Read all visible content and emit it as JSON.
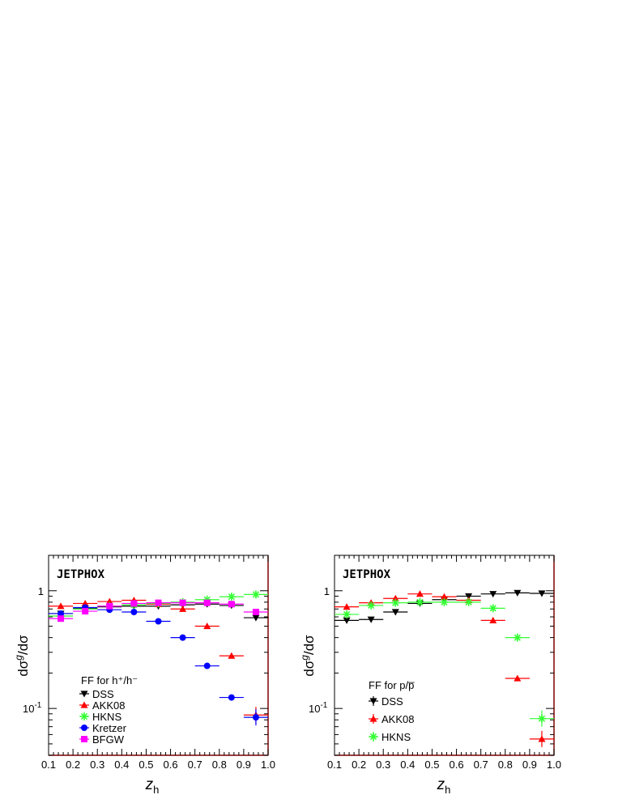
{
  "chart_data": [
    {
      "type": "scatter",
      "tag": "JETPHOX",
      "xlabel": "z",
      "xlabel_sub": "h",
      "ylabel": "dσ",
      "ylabel_sup": "g",
      "ylabel_tail": "/dσ",
      "xlim": [
        0.1,
        1.0
      ],
      "ylim": [
        0.04,
        2.0
      ],
      "yscale": "log",
      "x_ticks": [
        "0.1",
        "0.2",
        "0.3",
        "0.4",
        "0.5",
        "0.6",
        "0.7",
        "0.8",
        "0.9",
        "1.0"
      ],
      "y_ticks": [
        {
          "base": "10",
          "exp": "-1",
          "value": 0.1
        },
        {
          "text": "1",
          "value": 1
        }
      ],
      "legend_title": "FF for h⁺/h⁻",
      "legend_position": "bottom-left",
      "series": [
        {
          "name": "DSS",
          "marker": "triangle-down",
          "color": "#000000",
          "x": [
            0.15,
            0.25,
            0.35,
            0.45,
            0.55,
            0.65,
            0.75,
            0.85,
            0.95
          ],
          "y": [
            0.64,
            0.71,
            0.73,
            0.74,
            0.74,
            0.76,
            0.77,
            0.75,
            0.59
          ]
        },
        {
          "name": "AKK08",
          "marker": "triangle-up",
          "color": "#ff0000",
          "x": [
            0.15,
            0.25,
            0.35,
            0.45,
            0.55,
            0.65,
            0.75,
            0.85,
            0.95
          ],
          "y": [
            0.74,
            0.78,
            0.81,
            0.83,
            0.77,
            0.7,
            0.5,
            0.28,
            0.088
          ]
        },
        {
          "name": "HKNS",
          "marker": "asterisk",
          "color": "#33ff33",
          "x": [
            0.15,
            0.25,
            0.35,
            0.45,
            0.55,
            0.65,
            0.75,
            0.85,
            0.95
          ],
          "y": [
            0.61,
            0.7,
            0.74,
            0.76,
            0.78,
            0.8,
            0.84,
            0.89,
            0.93
          ]
        },
        {
          "name": "Kretzer",
          "marker": "circle",
          "color": "#0000ff",
          "x": [
            0.15,
            0.25,
            0.35,
            0.45,
            0.55,
            0.65,
            0.75,
            0.85,
            0.95
          ],
          "y": [
            0.64,
            0.72,
            0.69,
            0.66,
            0.55,
            0.4,
            0.23,
            0.124,
            0.084
          ]
        },
        {
          "name": "BFGW",
          "marker": "square",
          "color": "#ff00ff",
          "x": [
            0.15,
            0.25,
            0.35,
            0.45,
            0.55,
            0.65,
            0.75,
            0.85,
            0.95
          ],
          "y": [
            0.58,
            0.67,
            0.74,
            0.78,
            0.79,
            0.79,
            0.79,
            0.77,
            0.66
          ]
        }
      ]
    },
    {
      "type": "scatter",
      "tag": "JETPHOX",
      "xlabel": "z",
      "xlabel_sub": "h",
      "ylabel": "dσ",
      "ylabel_sup": "g",
      "ylabel_tail": "/dσ",
      "xlim": [
        0.1,
        1.0
      ],
      "ylim": [
        0.04,
        2.0
      ],
      "yscale": "log",
      "x_ticks": [
        "0.1",
        "0.2",
        "0.3",
        "0.4",
        "0.5",
        "0.6",
        "0.7",
        "0.8",
        "0.9",
        "1.0"
      ],
      "y_ticks": [
        {
          "base": "10",
          "exp": "-1",
          "value": 0.1
        },
        {
          "text": "1",
          "value": 1
        }
      ],
      "legend_title": "FF for p/p̅",
      "legend_position": "bottom-left",
      "series": [
        {
          "name": "DSS",
          "marker": "triangle-down",
          "color": "#000000",
          "x": [
            0.15,
            0.25,
            0.35,
            0.45,
            0.55,
            0.65,
            0.75,
            0.85,
            0.95
          ],
          "y": [
            0.56,
            0.57,
            0.66,
            0.78,
            0.84,
            0.9,
            0.94,
            0.96,
            0.95
          ]
        },
        {
          "name": "AKK08",
          "marker": "triangle-up",
          "color": "#ff0000",
          "x": [
            0.15,
            0.25,
            0.35,
            0.45,
            0.55,
            0.65,
            0.75,
            0.85,
            0.95
          ],
          "y": [
            0.73,
            0.79,
            0.86,
            0.94,
            0.89,
            0.83,
            0.56,
            0.18,
            0.055
          ]
        },
        {
          "name": "HKNS",
          "marker": "asterisk",
          "color": "#33ff33",
          "x": [
            0.15,
            0.25,
            0.35,
            0.45,
            0.55,
            0.65,
            0.75,
            0.85,
            0.95
          ],
          "y": [
            0.63,
            0.75,
            0.79,
            0.8,
            0.8,
            0.8,
            0.71,
            0.4,
            0.082
          ]
        }
      ]
    }
  ]
}
